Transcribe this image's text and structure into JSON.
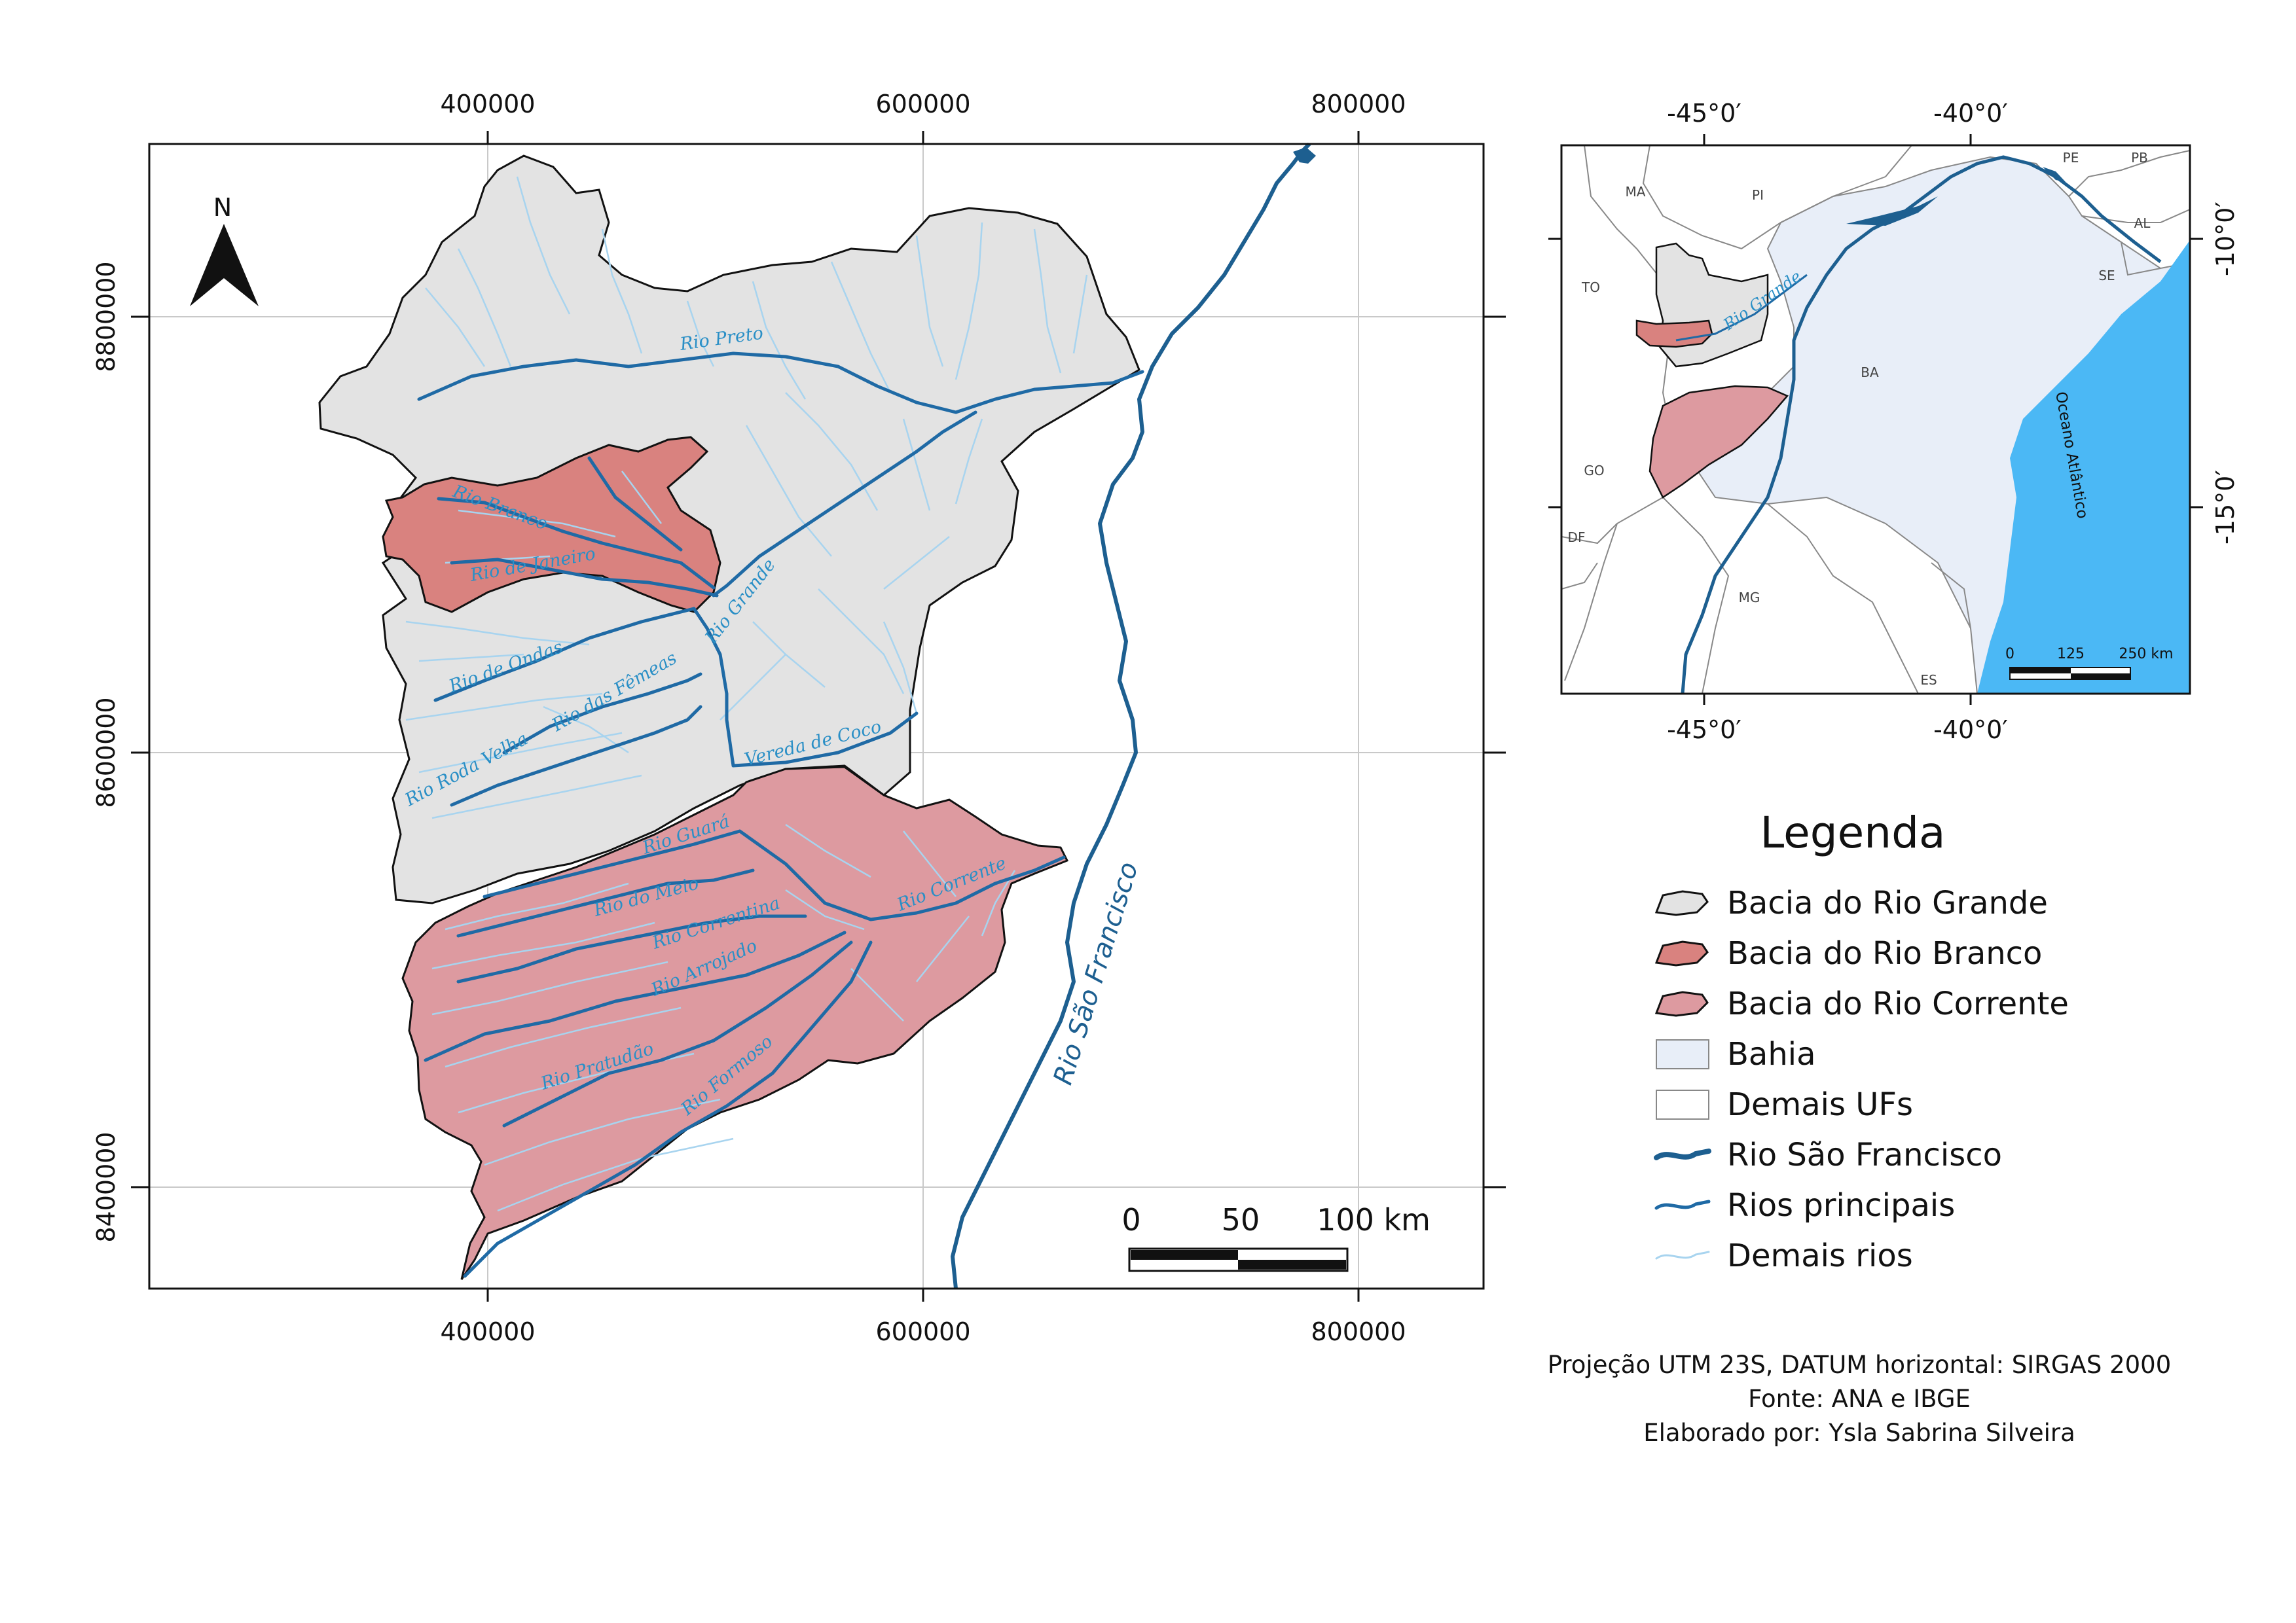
{
  "main_map": {
    "x_ticks": [
      "400000",
      "600000",
      "800000"
    ],
    "y_ticks": [
      "8800000",
      "8600000",
      "8400000"
    ],
    "north_label": "N",
    "scale": {
      "labels": [
        "0",
        "50",
        "100 km"
      ]
    },
    "rivers": {
      "preto": "Rio Preto",
      "branco": "Rio Branco",
      "janeiro": "Rio de Janeiro",
      "grande": "Rio Grande",
      "ondas": "Rio de Ondas",
      "femeas": "Rio das Fêmeas",
      "roda_velha": "Rio Roda Velha",
      "vereda_coco": "Vereda de Coco",
      "guara": "Rio Guará",
      "meio": "Rio do Meio",
      "correntina": "Rio Correntina",
      "arrojado": "Rio Arrojado",
      "corrente": "Rio Corrente",
      "pratudao": "Rio Pratudão",
      "formoso": "Rio Formoso",
      "sao_francisco": "Rio São Francisco"
    },
    "colors": {
      "bacia_grande": "#e3e3e3",
      "bacia_branco": "#d9827f",
      "bacia_corrente": "#dd9aa0",
      "main_river": "#1f6aa5",
      "sao_francisco": "#1d5f90",
      "minor_river": "#a8d4ef"
    }
  },
  "inset_map": {
    "x_ticks": [
      "-45°0′",
      "-40°0′"
    ],
    "y_ticks": [
      "-10°0′",
      "-15°0′"
    ],
    "states": [
      "MA",
      "PI",
      "PE",
      "PB",
      "AL",
      "SE",
      "TO",
      "BA",
      "GO",
      "DF",
      "MG",
      "ES"
    ],
    "ocean_label": "Oceano Atlântico",
    "river_label": "Rio Grande",
    "scale": {
      "labels": [
        "0",
        "125",
        "250 km"
      ]
    },
    "colors": {
      "bahia": "#e8eef8",
      "ocean": "#4bb8f5",
      "other_ufs": "#ffffff"
    }
  },
  "legend": {
    "title": "Legenda",
    "items": [
      {
        "label": "Bacia do Rio Grande",
        "symbol": "polygon",
        "color": "#e3e3e3"
      },
      {
        "label": "Bacia do Rio Branco",
        "symbol": "polygon",
        "color": "#d9827f"
      },
      {
        "label": "Bacia do Rio Corrente",
        "symbol": "polygon",
        "color": "#dd9aa0"
      },
      {
        "label": "Bahia",
        "symbol": "rect",
        "color": "#e8eef8"
      },
      {
        "label": "Demais UFs",
        "symbol": "rect",
        "color": "#ffffff"
      },
      {
        "label": "Rio São Francisco",
        "symbol": "line-thick",
        "color": "#1d5f90"
      },
      {
        "label": "Rios principais",
        "symbol": "line",
        "color": "#1f6aa5"
      },
      {
        "label": "Demais rios",
        "symbol": "line-thin",
        "color": "#a8d4ef"
      }
    ]
  },
  "footer": {
    "projection": "Projeção UTM 23S, DATUM horizontal: SIRGAS 2000",
    "source": "Fonte: ANA e IBGE",
    "author": "Elaborado por: Ysla Sabrina Silveira"
  }
}
